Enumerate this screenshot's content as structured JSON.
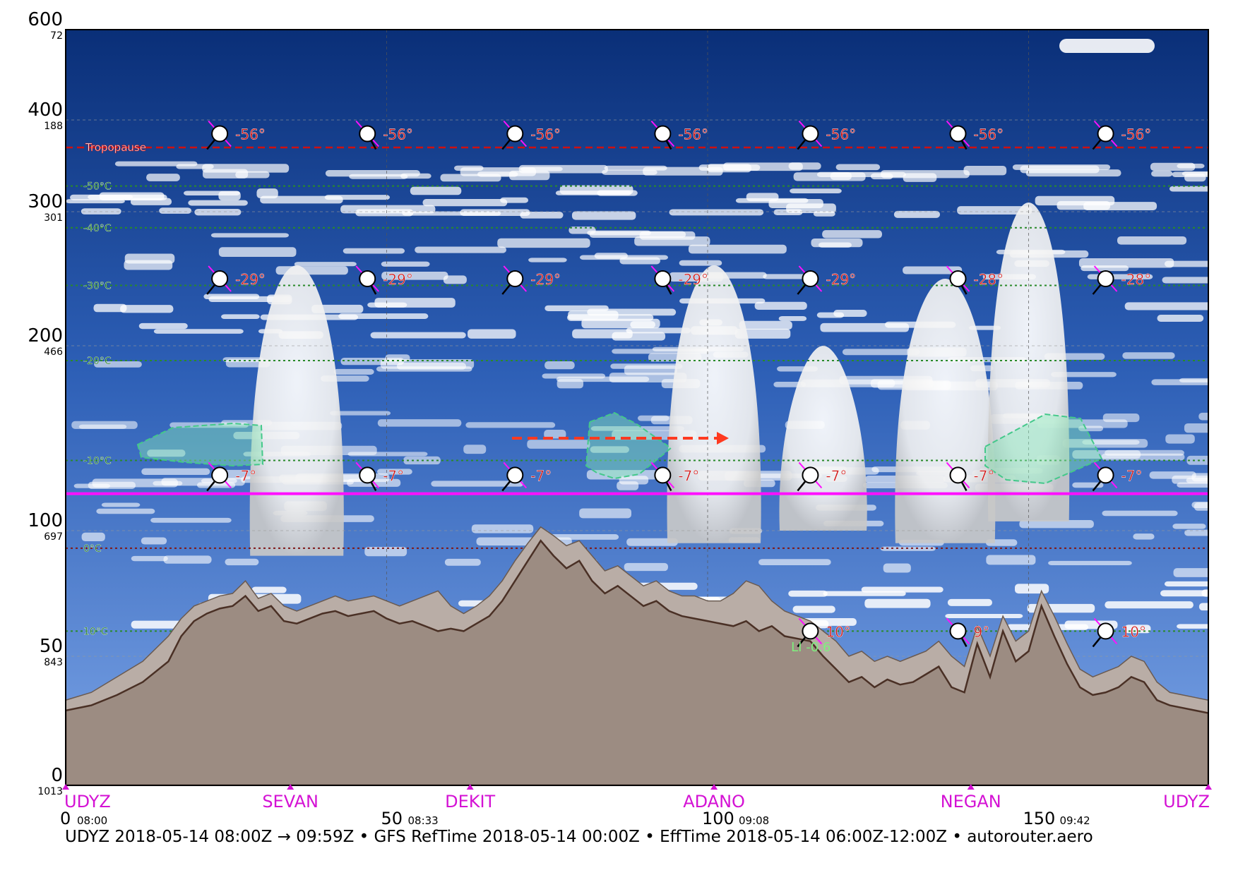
{
  "footer": "UDYZ 2018-05-14 08:00Z → 09:59Z • GFS RefTime 2018-05-14 00:00Z • EffTime 2018-05-14 06:00Z-12:00Z • autorouter.aero",
  "chart_data": {
    "type": "area",
    "title": "",
    "xlabel": "",
    "ylabel": "",
    "xlim": [
      0,
      178
    ],
    "ylim": [
      0,
      600
    ],
    "grid": true,
    "y_ticks": [
      {
        "alt": "600",
        "pressure": "72"
      },
      {
        "alt": "400",
        "pressure": "188"
      },
      {
        "alt": "300",
        "pressure": "301"
      },
      {
        "alt": "200",
        "pressure": "466"
      },
      {
        "alt": "100",
        "pressure": "697"
      },
      {
        "alt": "50",
        "pressure": "843"
      },
      {
        "alt": "0",
        "pressure": "1013"
      }
    ],
    "x_ticks": [
      {
        "dist": "0",
        "time": "08:00"
      },
      {
        "dist": "50",
        "time": "08:33"
      },
      {
        "dist": "100",
        "time": "09:08"
      },
      {
        "dist": "150",
        "time": "09:42"
      }
    ],
    "waypoints": [
      {
        "name": "UDYZ",
        "dist": 0
      },
      {
        "name": "SEVAN",
        "dist": 35
      },
      {
        "name": "DEKIT",
        "dist": 63
      },
      {
        "name": "ADANO",
        "dist": 101
      },
      {
        "name": "NEGAN",
        "dist": 141
      },
      {
        "name": "UDYZ",
        "dist": 178
      }
    ],
    "isotherms": [
      {
        "label": "-50°C",
        "fl": 328
      },
      {
        "label": "-40°C",
        "fl": 288
      },
      {
        "label": "-30°C",
        "fl": 245
      },
      {
        "label": "-20°C",
        "fl": 192
      },
      {
        "label": "-10°C",
        "fl": 138
      },
      {
        "label": "0°C",
        "fl": 93
      },
      {
        "label": "10°C",
        "fl": 60
      }
    ],
    "tropopause": {
      "label": "Tropopause",
      "fl": 370
    },
    "cruise_level_fl": 120,
    "lifted_index_labels": [
      "LI -0.6"
    ],
    "temperature_rows": [
      {
        "fl": 385,
        "temps": [
          "-56°",
          "-56°",
          "-56°",
          "-56°",
          "-56°",
          "-56°",
          "-56°"
        ]
      },
      {
        "fl": 250,
        "temps": [
          "-29°",
          "-29°",
          "-29°",
          "-29°",
          "-29°",
          "-28°",
          "-28°"
        ]
      },
      {
        "fl": 130,
        "temps": [
          "-7°",
          "-7°",
          "-7°",
          "-7°",
          "-7°",
          "-7°",
          "-7°"
        ]
      },
      {
        "fl": 60,
        "temps": [
          "",
          "",
          "",
          "",
          "10°",
          "9°",
          "10°"
        ]
      }
    ],
    "wind_station_dist": [
      24,
      47,
      70,
      93,
      116,
      139,
      162
    ],
    "terrain": {
      "x": [
        0,
        4,
        8,
        12,
        16,
        18,
        20,
        22,
        24,
        26,
        28,
        30,
        32,
        34,
        36,
        38,
        40,
        42,
        44,
        46,
        48,
        50,
        52,
        54,
        56,
        58,
        60,
        62,
        64,
        66,
        68,
        70,
        72,
        74,
        76,
        78,
        80,
        82,
        84,
        86,
        88,
        90,
        92,
        94,
        96,
        98,
        100,
        102,
        104,
        106,
        108,
        110,
        112,
        114,
        116,
        118,
        120,
        122,
        124,
        126,
        128,
        130,
        132,
        134,
        136,
        138,
        140,
        142,
        144,
        146,
        148,
        150,
        152,
        154,
        156,
        158,
        160,
        162,
        164,
        166,
        168,
        170,
        172,
        174,
        176,
        178
      ],
      "y": [
        29,
        31,
        35,
        40,
        48,
        58,
        64,
        67,
        69,
        70,
        74,
        68,
        70,
        64,
        63,
        65,
        67,
        68,
        66,
        67,
        68,
        65,
        63,
        64,
        62,
        60,
        61,
        60,
        63,
        66,
        72,
        80,
        88,
        96,
        90,
        85,
        88,
        80,
        75,
        78,
        74,
        70,
        72,
        68,
        66,
        65,
        64,
        63,
        62,
        64,
        60,
        62,
        58,
        57,
        56,
        50,
        45,
        40,
        42,
        38,
        41,
        39,
        40,
        43,
        46,
        38,
        36,
        55,
        42,
        60,
        48,
        52,
        70,
        58,
        47,
        38,
        35,
        36,
        38,
        42,
        40,
        33,
        31,
        30,
        29,
        28
      ]
    },
    "terrain_upper": {
      "x": [
        0,
        4,
        8,
        12,
        16,
        18,
        20,
        22,
        24,
        26,
        28,
        30,
        32,
        34,
        36,
        38,
        40,
        42,
        44,
        46,
        48,
        50,
        52,
        54,
        56,
        58,
        60,
        62,
        64,
        66,
        68,
        70,
        72,
        74,
        76,
        78,
        80,
        82,
        84,
        86,
        88,
        90,
        92,
        94,
        96,
        98,
        100,
        102,
        104,
        106,
        108,
        110,
        112,
        114,
        116,
        118,
        120,
        122,
        124,
        126,
        128,
        130,
        132,
        134,
        136,
        138,
        140,
        142,
        144,
        146,
        148,
        150,
        152,
        154,
        156,
        158,
        160,
        162,
        164,
        166,
        168,
        170,
        172,
        174,
        176,
        178
      ],
      "y": [
        33,
        36,
        42,
        48,
        58,
        65,
        70,
        72,
        74,
        75,
        80,
        73,
        75,
        70,
        68,
        70,
        72,
        74,
        72,
        73,
        74,
        72,
        70,
        72,
        74,
        76,
        70,
        67,
        70,
        74,
        80,
        88,
        95,
        102,
        98,
        94,
        96,
        90,
        84,
        86,
        82,
        78,
        80,
        76,
        74,
        74,
        72,
        72,
        75,
        80,
        78,
        72,
        68,
        66,
        64,
        60,
        56,
        50,
        52,
        48,
        50,
        48,
        50,
        52,
        56,
        50,
        46,
        62,
        50,
        66,
        56,
        60,
        76,
        66,
        55,
        45,
        42,
        44,
        46,
        50,
        48,
        40,
        36,
        35,
        34,
        33
      ]
    }
  }
}
